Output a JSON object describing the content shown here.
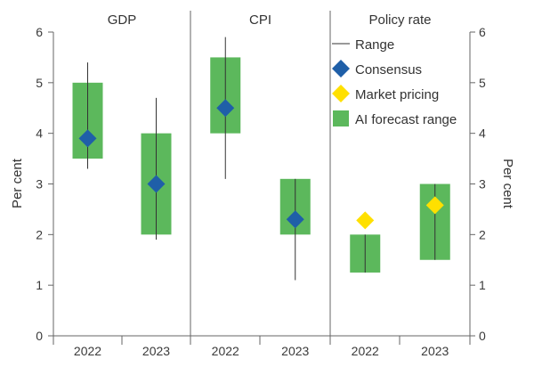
{
  "chart_data": {
    "type": "bar",
    "ylabel_left": "Per cent",
    "ylabel_right": "Per cent",
    "ylim": [
      0,
      6
    ],
    "yticks": [
      "0",
      "1",
      "2",
      "3",
      "4",
      "5",
      "6"
    ],
    "grid": false,
    "legend_placement": "top-right",
    "colors": {
      "ai_range": "#5cb85c",
      "consensus": "#1f5fa8",
      "market_pricing": "#ffe000",
      "range_line": "#333333",
      "axis": "#666666"
    },
    "legend": {
      "range": "Range",
      "consensus": "Consensus",
      "market_pricing": "Market pricing",
      "ai_range": "AI forecast range"
    },
    "panels": [
      {
        "title": "GDP",
        "categories": [
          "2022",
          "2023"
        ],
        "ai_forecast_range": [
          [
            3.5,
            5.0
          ],
          [
            2.0,
            4.0
          ]
        ],
        "range": [
          [
            3.3,
            5.4
          ],
          [
            1.9,
            4.7
          ]
        ],
        "consensus": [
          3.9,
          3.0
        ],
        "market_pricing": [
          null,
          null
        ]
      },
      {
        "title": "CPI",
        "categories": [
          "2022",
          "2023"
        ],
        "ai_forecast_range": [
          [
            4.0,
            5.5
          ],
          [
            2.0,
            3.1
          ]
        ],
        "range": [
          [
            3.1,
            5.9
          ],
          [
            1.1,
            3.1
          ]
        ],
        "consensus": [
          4.5,
          2.3
        ],
        "market_pricing": [
          null,
          null
        ]
      },
      {
        "title": "Policy rate",
        "categories": [
          "2022",
          "2023"
        ],
        "ai_forecast_range": [
          [
            1.25,
            2.0
          ],
          [
            1.5,
            3.0
          ]
        ],
        "range": [
          [
            1.25,
            2.0
          ],
          [
            1.5,
            3.0
          ]
        ],
        "consensus": [
          null,
          null
        ],
        "market_pricing": [
          2.28,
          2.58
        ]
      }
    ]
  }
}
